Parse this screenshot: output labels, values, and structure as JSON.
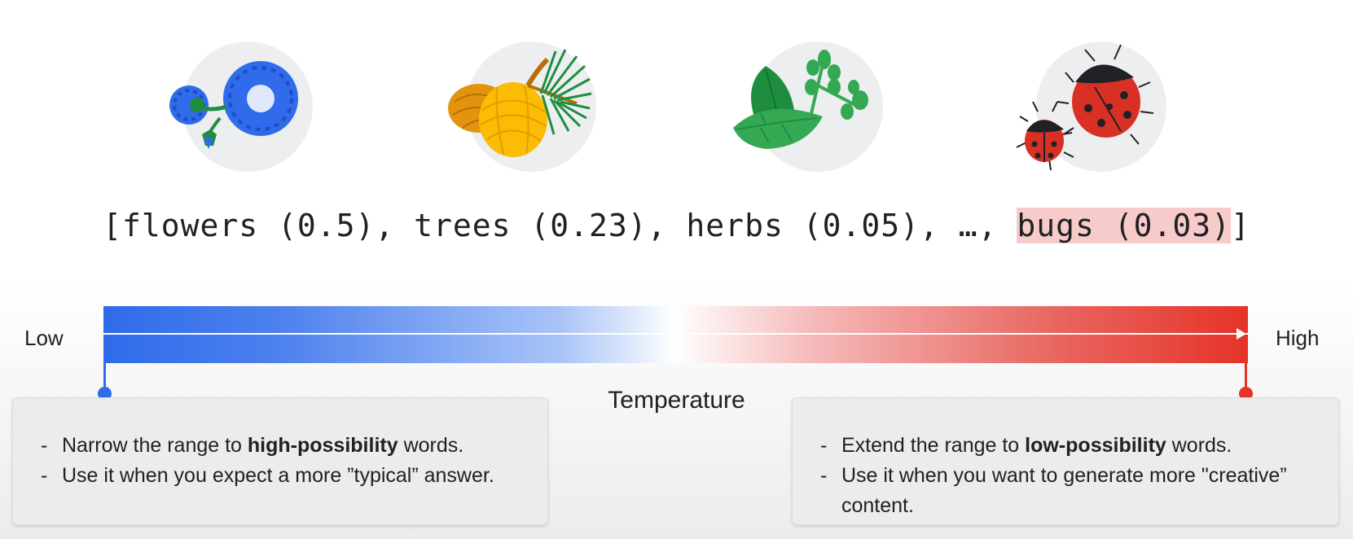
{
  "illustrations": [
    {
      "icon": "flowers-icon"
    },
    {
      "icon": "pinecones-icon"
    },
    {
      "icon": "herbs-icon"
    },
    {
      "icon": "ladybugs-icon"
    }
  ],
  "token_list": {
    "open": "[",
    "items_text": "flowers (0.5), trees (0.23), herbs (0.05), …, ",
    "highlight_text": "bugs (0.03)",
    "close": "]",
    "highlight_color": "#f8cbcb"
  },
  "scale": {
    "low_label": "Low",
    "high_label": "High",
    "title": "Temperature",
    "low_color": "#2f6bea",
    "high_color": "#e53328"
  },
  "low_box": {
    "line1_pre": "Narrow the range to ",
    "line1_bold": "high-possibility",
    "line1_post": " words.",
    "line2": "Use it when you expect a more ”typical” answer."
  },
  "high_box": {
    "line1_pre": "Extend the range to ",
    "line1_bold": "low-possibility",
    "line1_post": " words.",
    "line2": "Use it when you want to generate more \"creative” content."
  }
}
